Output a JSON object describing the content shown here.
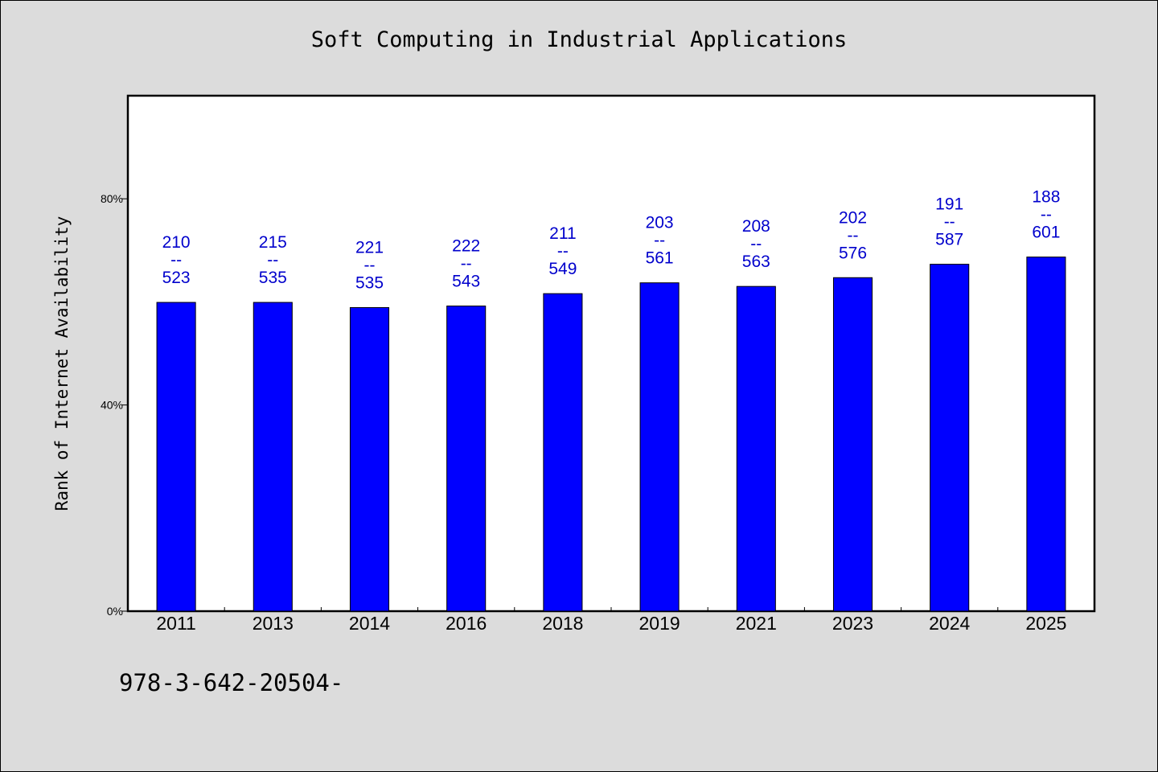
{
  "chart_data": {
    "type": "bar",
    "title": "Soft Computing in Industrial Applications",
    "xlabel": "",
    "ylabel": "Rank of Internet Availability",
    "categories": [
      "2011",
      "2013",
      "2014",
      "2016",
      "2018",
      "2019",
      "2021",
      "2023",
      "2024",
      "2025"
    ],
    "values": [
      59.9,
      59.9,
      58.9,
      59.2,
      61.6,
      63.7,
      63.0,
      64.7,
      67.3,
      68.7
    ],
    "bar_labels": [
      {
        "top": "210",
        "mid": "--",
        "bottom": "523"
      },
      {
        "top": "215",
        "mid": "--",
        "bottom": "535"
      },
      {
        "top": "221",
        "mid": "--",
        "bottom": "535"
      },
      {
        "top": "222",
        "mid": "--",
        "bottom": "543"
      },
      {
        "top": "211",
        "mid": "--",
        "bottom": "549"
      },
      {
        "top": "203",
        "mid": "--",
        "bottom": "561"
      },
      {
        "top": "208",
        "mid": "--",
        "bottom": "563"
      },
      {
        "top": "202",
        "mid": "--",
        "bottom": "576"
      },
      {
        "top": "191",
        "mid": "--",
        "bottom": "587"
      },
      {
        "top": "188",
        "mid": "--",
        "bottom": "601"
      }
    ],
    "yticks": [
      0,
      40,
      80
    ],
    "ytick_labels": [
      "0%",
      "40%",
      "80%"
    ],
    "ylim": [
      0,
      100
    ],
    "grid": false,
    "colors": {
      "bar": "#0000ff",
      "label": "#0000cc",
      "plot_bg": "#ffffff",
      "page_bg": "#dcdcdc"
    }
  },
  "footer": {
    "text": "978-3-642-20504-"
  }
}
